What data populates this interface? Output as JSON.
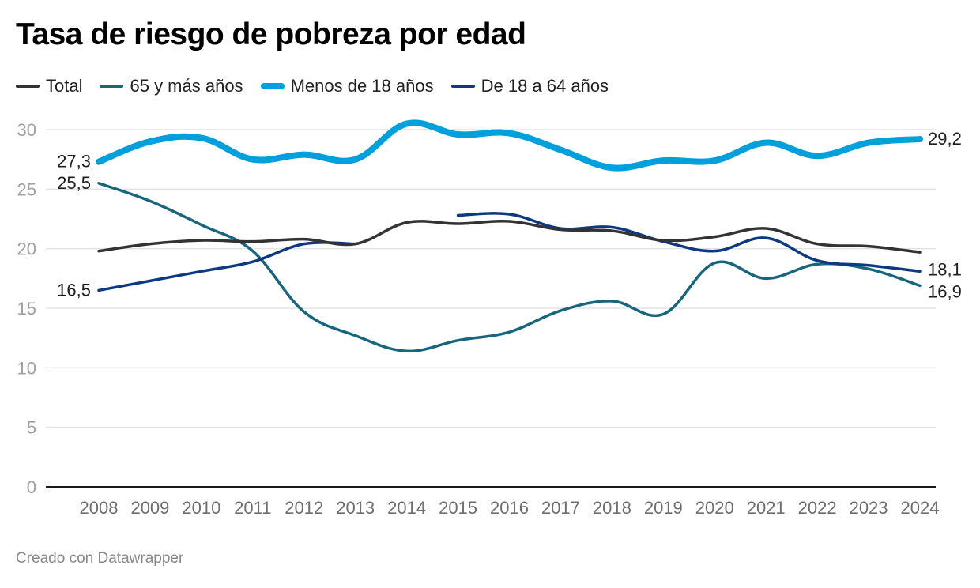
{
  "footer": "Creado con Datawrapper",
  "chart_data": {
    "type": "line",
    "title": "Tasa de riesgo de pobreza por edad",
    "xlabel": "",
    "ylabel": "",
    "ylim": [
      0,
      30
    ],
    "y_ticks": [
      "0",
      "5",
      "10",
      "15",
      "20",
      "25",
      "30"
    ],
    "grid": true,
    "legend_position": "top-left",
    "x": [
      "2008",
      "2009",
      "2010",
      "2011",
      "2012",
      "2013",
      "2014",
      "2015",
      "2016",
      "2017",
      "2018",
      "2019",
      "2020",
      "2021",
      "2022",
      "2023",
      "2024"
    ],
    "series": [
      {
        "name": "Total",
        "color": "#333333",
        "values": [
          19.8,
          20.4,
          20.7,
          20.6,
          20.8,
          20.4,
          22.2,
          22.1,
          22.3,
          21.6,
          21.5,
          20.7,
          21.0,
          21.7,
          20.4,
          20.2,
          19.7
        ],
        "start_label": null,
        "end_label": null
      },
      {
        "name": "65 y más años",
        "color": "#17667d",
        "values": [
          25.5,
          24.0,
          22.0,
          19.8,
          14.7,
          12.7,
          11.4,
          12.3,
          13.0,
          14.8,
          15.6,
          14.5,
          18.8,
          17.5,
          18.7,
          18.3,
          16.9
        ],
        "start_label": "25,5",
        "end_label": "16,9"
      },
      {
        "name": "Menos de 18 años",
        "color": "#00a0dc",
        "values": [
          27.3,
          29.0,
          29.3,
          27.5,
          27.9,
          27.5,
          30.5,
          29.6,
          29.7,
          28.3,
          26.8,
          27.4,
          27.4,
          28.9,
          27.8,
          28.9,
          29.2
        ],
        "start_label": "27,3",
        "end_label": "29,2"
      },
      {
        "name": "De 18 a 64 años",
        "color": "#0b3a82",
        "values": [
          16.5,
          17.3,
          18.1,
          18.9,
          20.4,
          20.4,
          null,
          22.8,
          22.9,
          21.7,
          21.8,
          20.6,
          19.8,
          20.9,
          19.0,
          18.6,
          18.1
        ],
        "start_label": "16,5",
        "end_label": "18,1"
      }
    ]
  }
}
